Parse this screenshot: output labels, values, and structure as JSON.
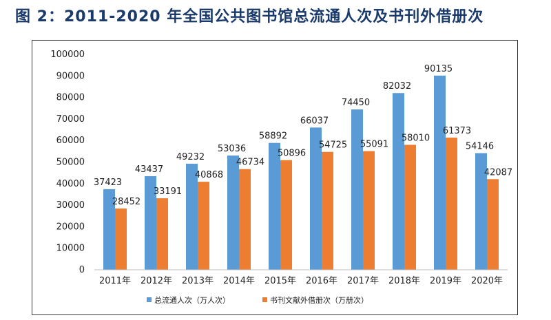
{
  "page": {
    "title": "图 2：2011-2020 年全国公共图书馆总流通人次及书刊外借册次"
  },
  "chart_data": {
    "type": "bar",
    "title": "图 2：2011-2020 年全国公共图书馆总流通人次及书刊外借册次",
    "categories": [
      "2011年",
      "2012年",
      "2013年",
      "2014年",
      "2015年",
      "2016年",
      "2017年",
      "2018年",
      "2019年",
      "2020年"
    ],
    "series": [
      {
        "name": "总流通人次（万人次）",
        "color": "#5b9bd5",
        "values": [
          37423,
          43437,
          49232,
          53036,
          58892,
          66037,
          74450,
          82032,
          90135,
          54146
        ]
      },
      {
        "name": "书刊文献外借册次（万册次）",
        "color": "#ed7d31",
        "values": [
          28452,
          33191,
          40868,
          46734,
          50896,
          54725,
          55091,
          58010,
          61373,
          42087
        ]
      }
    ],
    "yticks": [
      "0",
      "10000",
      "20000",
      "30000",
      "40000",
      "50000",
      "60000",
      "70000",
      "80000",
      "90000",
      "100000"
    ],
    "ylim": [
      0,
      100000
    ],
    "xlabel": "",
    "ylabel": "",
    "grid": false,
    "legend_position": "bottom"
  }
}
